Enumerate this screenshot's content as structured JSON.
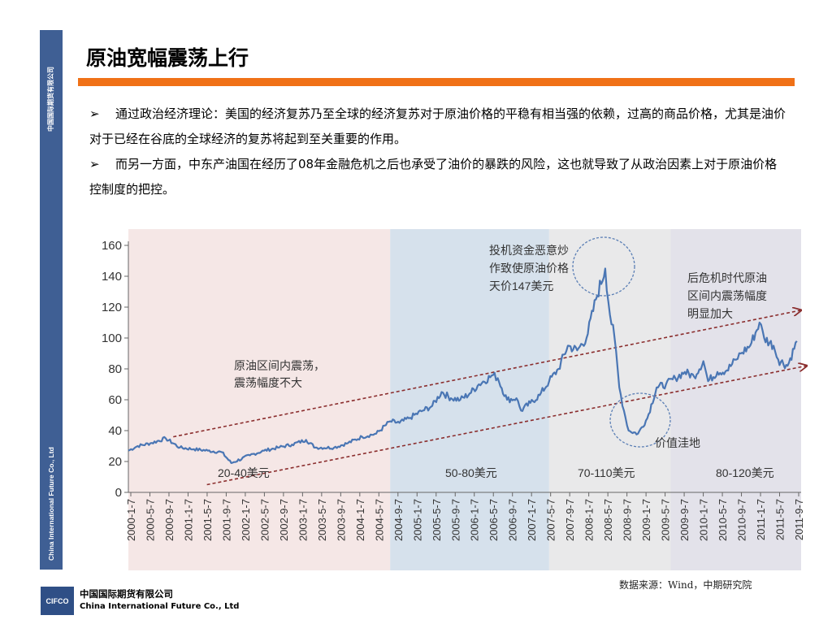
{
  "sidebar": {
    "top_text": "中国国际期货有限公司",
    "bottom_text": "China International Future Co., Ltd",
    "color": "#3f5f94"
  },
  "slide": {
    "title": "原油宽幅震荡上行",
    "accent_color": "#f07117",
    "bullets": [
      {
        "marker": "➢",
        "text": "通过政治经济理论：美国的经济复苏乃至全球的经济复苏对于原油价格的平稳有相当强的依赖，过高的商品价格，尤其是油价对于已经在谷底的全球经济的复苏将起到至关重要的作用。"
      },
      {
        "marker": "➢",
        "text": "而另一方面，中东产油国在经历了08年金融危机之后也承受了油价的暴跌的风险，这也就导致了从政治因素上对于原油价格控制度的把控。"
      }
    ]
  },
  "chart_data": {
    "type": "line",
    "title": "",
    "xlabel": "",
    "ylabel": "",
    "ylim": [
      0,
      160
    ],
    "yticks": [
      0,
      20,
      40,
      60,
      80,
      100,
      120,
      140,
      160
    ],
    "xticks": [
      "2000-1-7",
      "2000-5-7",
      "2000-9-7",
      "2001-1-7",
      "2001-5-7",
      "2001-9-7",
      "2002-1-7",
      "2002-5-7",
      "2002-9-7",
      "2003-1-7",
      "2003-5-7",
      "2003-9-7",
      "2004-1-7",
      "2004-5-7",
      "2004-9-7",
      "2005-1-7",
      "2005-5-7",
      "2005-9-7",
      "2006-1-7",
      "2006-5-7",
      "2006-9-7",
      "2007-1-7",
      "2007-5-7",
      "2007-9-7",
      "2008-1-7",
      "2008-5-7",
      "2008-9-7",
      "2009-1-7",
      "2009-5-7",
      "2009-9-7",
      "2010-1-7",
      "2010-5-7",
      "2010-9-7",
      "2011-1-7",
      "2011-5-7",
      "2011-9-7"
    ],
    "line_color": "#4a76b4",
    "series": [
      {
        "name": "",
        "x": [
          "2000-1",
          "2000-3",
          "2000-6",
          "2000-9",
          "2000-12",
          "2001-3",
          "2001-6",
          "2001-9",
          "2001-11",
          "2002-3",
          "2002-6",
          "2002-9",
          "2002-12",
          "2003-3",
          "2003-5",
          "2003-9",
          "2003-12",
          "2004-3",
          "2004-6",
          "2004-9",
          "2004-11",
          "2005-1",
          "2005-4",
          "2005-6",
          "2005-8",
          "2005-10",
          "2005-12",
          "2006-2",
          "2006-4",
          "2006-7",
          "2006-8",
          "2006-10",
          "2006-12",
          "2007-1",
          "2007-3",
          "2007-5",
          "2007-7",
          "2007-9",
          "2007-11",
          "2008-1",
          "2008-3",
          "2008-5",
          "2008-7",
          "2008-8",
          "2008-9",
          "2008-10",
          "2008-11",
          "2008-12",
          "2009-2",
          "2009-4",
          "2009-6",
          "2009-8",
          "2009-10",
          "2009-12",
          "2010-2",
          "2010-4",
          "2010-5",
          "2010-7",
          "2010-9",
          "2010-11",
          "2010-12",
          "2011-2",
          "2011-4",
          "2011-5",
          "2011-7",
          "2011-8",
          "2011-10",
          "2011-12"
        ],
        "values": [
          27,
          30,
          32,
          35,
          29,
          28,
          27,
          26,
          19,
          24,
          27,
          29,
          31,
          34,
          29,
          29,
          32,
          36,
          38,
          46,
          45,
          48,
          53,
          56,
          65,
          61,
          60,
          64,
          70,
          76,
          74,
          60,
          61,
          53,
          58,
          63,
          72,
          80,
          95,
          92,
          100,
          125,
          145,
          115,
          100,
          68,
          53,
          40,
          38,
          48,
          68,
          70,
          74,
          78,
          75,
          85,
          72,
          78,
          79,
          86,
          90,
          95,
          110,
          100,
          95,
          86,
          82,
          98
        ]
      }
    ],
    "regions": [
      {
        "label": "20-40美元",
        "from": "2000-1",
        "to": "2004-9",
        "color": "#f5e7e6"
      },
      {
        "label": "50-80美元",
        "from": "2004-9",
        "to": "2007-7",
        "color": "#d6e1ec"
      },
      {
        "label": "70-110美元",
        "from": "2007-7",
        "to": "2009-9",
        "color": "#e9e9ea"
      },
      {
        "label": "80-120美元",
        "from": "2009-9",
        "to": "2011-12",
        "color": "#e3e2ea"
      }
    ],
    "annotations": [
      {
        "text": "原油区间内震荡，震荡幅度不大"
      },
      {
        "text": "投机资金恶意炒作致使原油价格天价147美元"
      },
      {
        "text": "后危机时代原油区间内震荡幅度明显加大"
      },
      {
        "text": "价值洼地"
      }
    ],
    "source": "数据来源：Wind，中期研究院"
  },
  "footer": {
    "logo_text": "CIFCO",
    "company_cn": "中国国际期货有限公司",
    "company_en": "China International Future Co., Ltd"
  }
}
